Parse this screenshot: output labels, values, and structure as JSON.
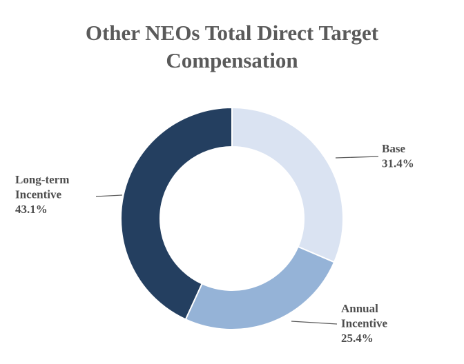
{
  "chart_data": {
    "type": "pie",
    "variant": "donut",
    "title": "Other NEOs Total Direct Target Compensation",
    "title_lines": [
      "Other NEOs Total Direct Target",
      "Compensation"
    ],
    "unit": "%",
    "legend": "none",
    "slices": [
      {
        "label": "Base",
        "label_lines": [
          "Base"
        ],
        "value": 31.4,
        "value_label": "31.4%",
        "color": "#dae3f2"
      },
      {
        "label": "Annual Incentive",
        "label_lines": [
          "Annual",
          "Incentive"
        ],
        "value": 25.4,
        "value_label": "25.4%",
        "color": "#95b3d7"
      },
      {
        "label": "Long-term Incentive",
        "label_lines": [
          "Long-term",
          "Incentive"
        ],
        "value": 43.1,
        "value_label": "43.1%",
        "color": "#243f60"
      }
    ]
  }
}
